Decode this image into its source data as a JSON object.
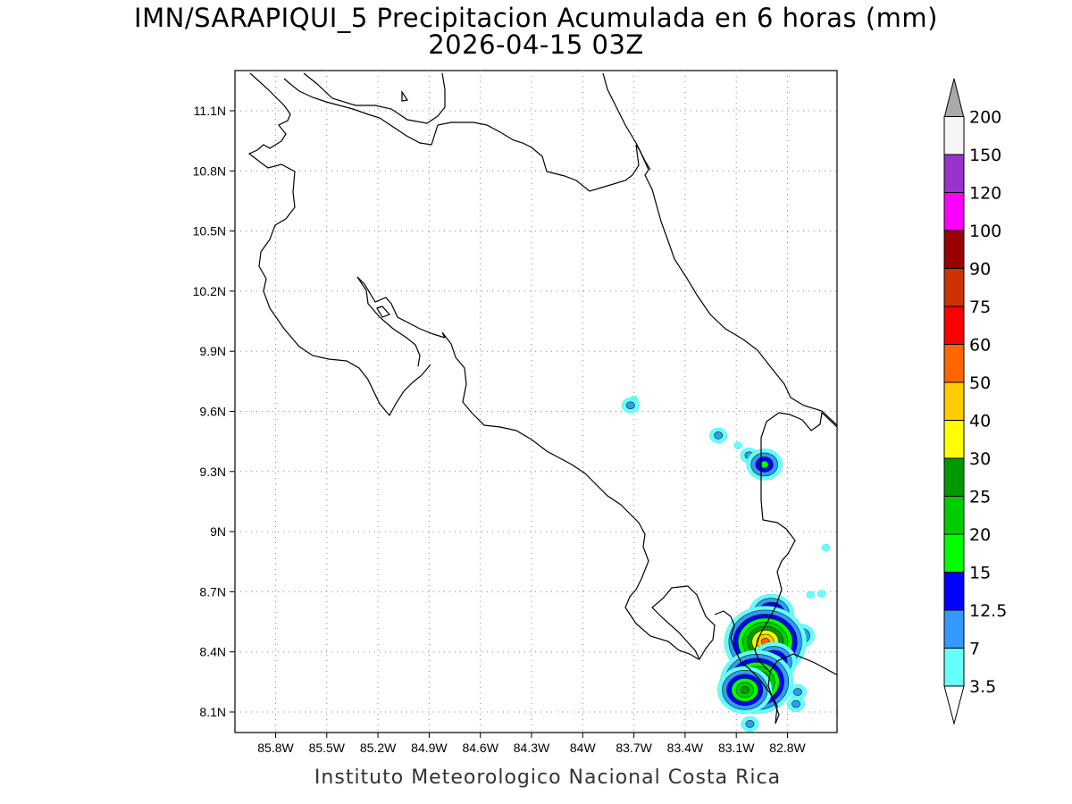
{
  "header": {
    "title": "IMN/SARAPIQUI_5 Precipitacion Acumulada en 6 horas (mm)",
    "subtitle": "2026-04-15 03Z"
  },
  "footer": {
    "credit": "Instituto Meteorologico Nacional Costa Rica"
  },
  "map": {
    "lon_ticks": [
      "85.8W",
      "85.5W",
      "85.2W",
      "84.9W",
      "84.6W",
      "84.3W",
      "84W",
      "83.7W",
      "83.4W",
      "83.1W",
      "82.8W"
    ],
    "lat_ticks": [
      "11.1N",
      "10.8N",
      "10.5N",
      "10.2N",
      "9.9N",
      "9.6N",
      "9.3N",
      "9N",
      "8.7N",
      "8.4N",
      "8.1N"
    ],
    "grid": "dotted"
  },
  "colorbar": {
    "labels": [
      "3.5",
      "7",
      "12.5",
      "15",
      "20",
      "25",
      "30",
      "40",
      "50",
      "60",
      "75",
      "90",
      "100",
      "120",
      "150",
      "200"
    ],
    "colors": [
      "#66ffff",
      "#3399ff",
      "#0000ff",
      "#00ff00",
      "#00cc00",
      "#009900",
      "#ffff00",
      "#ffcc00",
      "#ff6600",
      "#ff0000",
      "#cc3300",
      "#990000",
      "#ff00ff",
      "#9933cc",
      "#f5f5f5"
    ],
    "under_color": "#ffffff",
    "over_color": "#aaaaaa"
  },
  "precip_cells": [
    {
      "lon": -83.7,
      "lat": 9.66,
      "level": 1
    },
    {
      "lon": -83.72,
      "lat": 9.63,
      "level": 2
    },
    {
      "lon": -83.205,
      "lat": 9.48,
      "level": 2
    },
    {
      "lon": -83.09,
      "lat": 9.43,
      "level": 1
    },
    {
      "lon": -83.025,
      "lat": 9.38,
      "level": 2
    },
    {
      "lon": -82.935,
      "lat": 9.335,
      "level": 4
    },
    {
      "lon": -82.575,
      "lat": 8.92,
      "level": 1
    },
    {
      "lon": -82.6,
      "lat": 8.69,
      "level": 1
    },
    {
      "lon": -82.665,
      "lat": 8.685,
      "level": 1
    },
    {
      "lon": -82.895,
      "lat": 8.59,
      "level": 5
    },
    {
      "lon": -82.72,
      "lat": 8.48,
      "level": 3
    },
    {
      "lon": -82.93,
      "lat": 8.45,
      "level": 9
    },
    {
      "lon": -82.88,
      "lat": 8.35,
      "level": 5
    },
    {
      "lon": -82.97,
      "lat": 8.32,
      "level": 3
    },
    {
      "lon": -82.98,
      "lat": 8.25,
      "level": 8
    },
    {
      "lon": -83.05,
      "lat": 8.21,
      "level": 6
    },
    {
      "lon": -82.74,
      "lat": 8.2,
      "level": 2
    },
    {
      "lon": -82.75,
      "lat": 8.14,
      "level": 2
    },
    {
      "lon": -83.02,
      "lat": 8.04,
      "level": 2
    }
  ]
}
